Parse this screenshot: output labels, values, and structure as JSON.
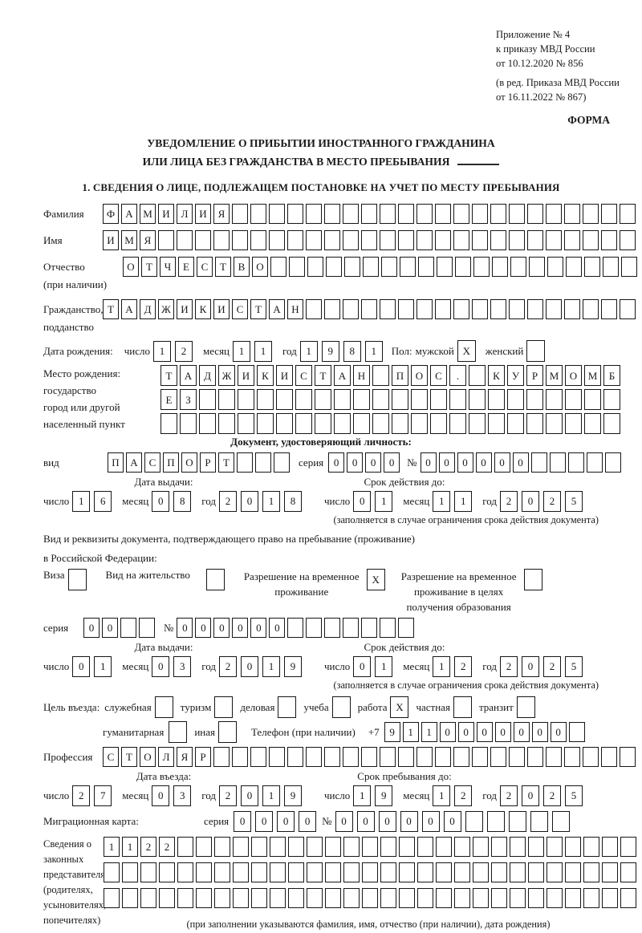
{
  "meta": {
    "appendix": [
      "Приложение № 4",
      "к приказу МВД России",
      "от 10.12.2020 № 856"
    ],
    "revision": [
      "(в ред. Приказа МВД России",
      "от 16.11.2022 № 867)"
    ],
    "form_label": "ФОРМА"
  },
  "title": {
    "line1": "УВЕДОМЛЕНИЕ О ПРИБЫТИИ ИНОСТРАННОГО ГРАЖДАНИНА",
    "line2": "ИЛИ ЛИЦА БЕЗ ГРАЖДАНСТВА В МЕСТО ПРЕБЫВАНИЯ"
  },
  "section1_heading": "1. СВЕДЕНИЯ О ЛИЦЕ, ПОДЛЕЖАЩЕМ ПОСТАНОВКЕ НА УЧЕТ ПО МЕСТУ ПРЕБЫВАНИЯ",
  "labels": {
    "day": "число",
    "month": "месяц",
    "year": "год",
    "series": "серия",
    "number": "№"
  },
  "fields": {
    "surname": {
      "label": "Фамилия",
      "value": "ФАМИЛИЯ",
      "count": 29
    },
    "name": {
      "label": "Имя",
      "value": "ИМЯ",
      "count": 29
    },
    "patronymic": {
      "label": "Отчество",
      "note": "(при наличии)",
      "value": "ОТЧЕСТВО",
      "count": 28
    },
    "citizenship": {
      "label": "Гражданство,",
      "label2": "подданство",
      "value": "ТАДЖИКИСТАН",
      "count": 29
    },
    "birth_date": {
      "label": "Дата рождения:",
      "day": {
        "value": "12",
        "count": 2
      },
      "month": {
        "value": "11",
        "count": 2
      },
      "year": {
        "value": "1981",
        "count": 4
      }
    },
    "sex": {
      "label": "Пол:",
      "male_label": "мужской",
      "male": {
        "value": "X",
        "count": 1
      },
      "female_label": "женский",
      "female": {
        "value": "",
        "count": 1
      }
    },
    "birthplace": {
      "label_lines": [
        "Место рождения:",
        "государство",
        "город или другой",
        "населенный пункт"
      ],
      "rows": [
        {
          "value": "ТАДЖИКИСТАН ПОС. КУРМОМБ",
          "count": 24
        },
        {
          "value": "ЕЗ",
          "count": 24
        },
        {
          "value": "",
          "count": 24
        }
      ]
    },
    "id_document": {
      "heading": "Документ, удостоверяющий личность:",
      "type": {
        "label": "вид",
        "value": "ПАСПОРТ",
        "count": 10
      },
      "series": {
        "value": "0000",
        "count": 4
      },
      "number": {
        "value": "000000",
        "count": 11
      },
      "issue": {
        "heading": "Дата выдачи:",
        "day": {
          "value": "16",
          "count": 2
        },
        "month": {
          "value": "08",
          "count": 2
        },
        "year": {
          "value": "2018",
          "count": 4
        }
      },
      "valid": {
        "heading": "Срок действия до:",
        "day": {
          "value": "01",
          "count": 2
        },
        "month": {
          "value": "11",
          "count": 2
        },
        "year": {
          "value": "2025",
          "count": 4
        }
      },
      "note": "(заполняется в случае ограничения срока действия документа)"
    },
    "residence_document": {
      "heading1": "Вид и реквизиты документа, подтверждающего право на пребывание (проживание)",
      "heading2": "в Российской Федерации:",
      "visa": {
        "label": "Виза",
        "value": "",
        "count": 1
      },
      "residence_permit": {
        "label": "Вид на жительство",
        "value": "",
        "count": 1
      },
      "temp_permit": {
        "label_lines": [
          "Разрешение на временное",
          "проживание"
        ],
        "value": "X",
        "count": 1
      },
      "temp_permit_edu": {
        "label_lines": [
          "Разрешение на временное",
          "проживание в целях",
          "получения образования"
        ],
        "value": "",
        "count": 1
      },
      "series": {
        "value": "00",
        "count": 4
      },
      "number": {
        "value": "000000",
        "count": 13
      },
      "issue": {
        "heading": "Дата выдачи:",
        "day": {
          "value": "01",
          "count": 2
        },
        "month": {
          "value": "03",
          "count": 2
        },
        "year": {
          "value": "2019",
          "count": 4
        }
      },
      "valid": {
        "heading": "Срок действия до:",
        "day": {
          "value": "01",
          "count": 2
        },
        "month": {
          "value": "12",
          "count": 2
        },
        "year": {
          "value": "2025",
          "count": 4
        }
      },
      "note": "(заполняется в случае ограничения срока действия документа)"
    },
    "visit_purpose": {
      "label": "Цель въезда:",
      "opt_sluzhebnaya": {
        "label": "служебная",
        "value": "",
        "count": 1
      },
      "opt_turizm": {
        "label": "туризм",
        "value": "",
        "count": 1
      },
      "opt_delovaya": {
        "label": "деловая",
        "value": "",
        "count": 1
      },
      "opt_ucheba": {
        "label": "учеба",
        "value": "",
        "count": 1
      },
      "opt_rabota": {
        "label": "работа",
        "value": "X",
        "count": 1
      },
      "opt_chastnaya": {
        "label": "частная",
        "value": "",
        "count": 1
      },
      "opt_tranzit": {
        "label": "транзит",
        "value": "",
        "count": 1
      },
      "opt_gumanitarnaya": {
        "label": "гуманитарная",
        "value": "",
        "count": 1
      },
      "opt_inaya": {
        "label": "иная",
        "value": "",
        "count": 1
      },
      "phone": {
        "label": "Телефон (при наличии)",
        "prefix": "+7",
        "value": "9110000000",
        "count": 11
      }
    },
    "profession": {
      "label": "Профессия",
      "value": "СТОЛЯР",
      "count": 29
    },
    "entry": {
      "issue": {
        "heading": "Дата въезда:",
        "day": {
          "value": "27",
          "count": 2
        },
        "month": {
          "value": "03",
          "count": 2
        },
        "year": {
          "value": "2019",
          "count": 4
        }
      },
      "valid": {
        "heading": "Срок пребывания до:",
        "day": {
          "value": "19",
          "count": 2
        },
        "month": {
          "value": "12",
          "count": 2
        },
        "year": {
          "value": "2025",
          "count": 4
        }
      }
    },
    "migration_card": {
      "label": "Миграционная карта:",
      "series": {
        "value": "0000",
        "count": 4
      },
      "number": {
        "value": "000000",
        "count": 11
      }
    },
    "representatives": {
      "label_lines": [
        "Сведения о",
        "законных",
        "представителях",
        "(родителях,",
        "усыновителях,",
        "попечителях)"
      ],
      "rows": [
        {
          "value": "1122",
          "count": 29
        },
        {
          "value": "",
          "count": 29
        },
        {
          "value": "",
          "count": 29
        }
      ],
      "note": "(при заполнении указываются фамилия, имя, отчество (при наличии), дата рождения)"
    }
  }
}
